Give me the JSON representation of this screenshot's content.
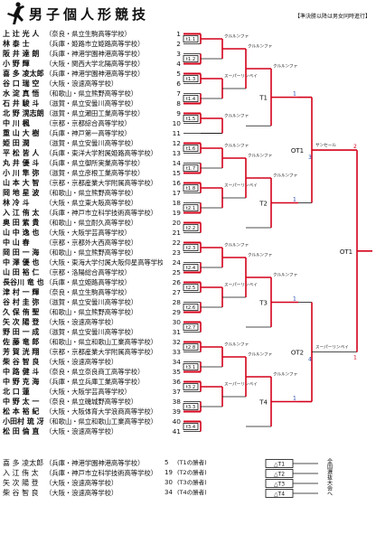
{
  "header": {
    "title": "男子個人形競技",
    "note": "【準決勝以降は男女同時進行】"
  },
  "entries": [
    {
      "name": "上 辻 光 人",
      "school": "（奈良・県立生駒高等学校）",
      "no": "1"
    },
    {
      "name": "林 泰 士",
      "school": "（兵庫・姫路市立姫路高等学校）",
      "no": "2"
    },
    {
      "name": "阪 井 達 朗",
      "school": "（兵庫・神港学園神港高等学校）",
      "no": "3"
    },
    {
      "name": "小 野 輝",
      "school": "（大阪・関西大学北陽高等学校）",
      "no": "4"
    },
    {
      "name": "喜 多 凌太郎",
      "school": "（兵庫・神港学園神港高等学校）",
      "no": "5"
    },
    {
      "name": "谷 口 瑞 空",
      "school": "（大阪・浪速高等学校）",
      "no": "6"
    },
    {
      "name": "水 淀 真 悟",
      "school": "（和歌山・県立熊野高等学校）",
      "no": "7"
    },
    {
      "name": "石 井 駿 斗",
      "school": "（滋賀・県立安曇川高等学校）",
      "no": "8"
    },
    {
      "name": "北 野 滉志朗",
      "school": "（滋賀・県立瀬田工業高等学校）",
      "no": "9"
    },
    {
      "name": "中 川 楓",
      "school": "（京都・京都綜合高等学校）",
      "no": "10"
    },
    {
      "name": "重 山 大 樹",
      "school": "（兵庫・神戸第一高等学校）",
      "no": "11"
    },
    {
      "name": "姫 田 潤",
      "school": "（滋賀・県立安曇川高等学校）",
      "no": "12"
    },
    {
      "name": "平 松 皆 人",
      "school": "（兵庫・東洋大学附属姫路高等学校）",
      "no": "13"
    },
    {
      "name": "丸 井 優 斗",
      "school": "（兵庫・県立御所実業高等学校）",
      "no": "14"
    },
    {
      "name": "小 川 隼 弥",
      "school": "（滋賀・県立彦根工業高等学校）",
      "no": "15"
    },
    {
      "name": "山 本 大 智",
      "school": "（京都・京都産業大学附属高等学校）",
      "no": "16"
    },
    {
      "name": "岡 地 星 波",
      "school": "（和歌山・県立熊野高等学校）",
      "no": "17"
    },
    {
      "name": "林 冷 斗",
      "school": "（大阪・県立東大阪高等学校）",
      "no": "18"
    },
    {
      "name": "入 江 侑 太",
      "school": "（兵庫・神戸市立科学技術高等学校）",
      "no": "19"
    },
    {
      "name": "奥 田 紫 貴",
      "school": "（和歌山・県立耐久高等学校）",
      "no": "20"
    },
    {
      "name": "山 中 逸 也",
      "school": "（大阪・大阪学芸高等学校）",
      "no": "21"
    },
    {
      "name": "中 山 春",
      "school": "（京都・京都外大西高等学校）",
      "no": "22"
    },
    {
      "name": "岡 田 一 海",
      "school": "（和歌山・県立熊野高等学校）",
      "no": "23"
    },
    {
      "name": "中 澤 優 也",
      "school": "（大阪・東海大学付属大阪仰星高等学校）",
      "no": "24"
    },
    {
      "name": "山 田 裕 仁",
      "school": "（京都・洛陽総合高等学校）",
      "no": "25"
    },
    {
      "name": "長谷川 竜 也",
      "school": "（兵庫・県立姫路高等学校）",
      "no": "26"
    },
    {
      "name": "津 村 一 輝",
      "school": "（奈良・県立生駒高等学校）",
      "no": "27"
    },
    {
      "name": "谷 村 圭 弥",
      "school": "（滋賀・県立安曇川高等学校）",
      "no": "28"
    },
    {
      "name": "久 保 侑 聖",
      "school": "（和歌山・県立熊野高等学校）",
      "no": "29"
    },
    {
      "name": "矢 次 陽 登",
      "school": "（大阪・浪速高等学校）",
      "no": "30"
    },
    {
      "name": "野 田 一 成",
      "school": "（滋賀・県立安曇川高等学校）",
      "no": "31"
    },
    {
      "name": "佐 藤 竜 郎",
      "school": "（和歌山・県立和歌山工業高等学校）",
      "no": "32"
    },
    {
      "name": "芳 賀 洸 翔",
      "school": "（京都・京都産業大学附属高等学校）",
      "no": "33"
    },
    {
      "name": "柴 谷 智 良",
      "school": "（大阪・浪速高等学校）",
      "no": "34"
    },
    {
      "name": "中 路 健 斗",
      "school": "（奈良・県立奈良商工高等学校）",
      "no": "35"
    },
    {
      "name": "中 野 克 海",
      "school": "（兵庫・県立兵庫工業高等学校）",
      "no": "36"
    },
    {
      "name": "北 口 蓮",
      "school": "（大阪・大阪学芸高等学校）",
      "no": "37"
    },
    {
      "name": "中 野 太 一",
      "school": "（奈良・県立磯城野高等学校）",
      "no": "38"
    },
    {
      "name": "松 本 裕 紀",
      "school": "（大阪・大阪体育大学浪商高等学校）",
      "no": "39"
    },
    {
      "name": "小田村 琉 冴",
      "school": "（和歌山・県立和歌山工業高等学校）",
      "no": "40"
    },
    {
      "name": "松 田 倫 直",
      "school": "（大阪・浪速高等学校）",
      "no": "41"
    }
  ],
  "reference": [
    {
      "name": "喜 多 凌太郎",
      "school": "（兵庫・神港学園神港高等学校）",
      "no": "5",
      "note": "(T1の勝者)"
    },
    {
      "name": "入 江 侑 太",
      "school": "（兵庫・神戸市立科学技術高等学校）",
      "no": "19",
      "note": "(T2の勝者)"
    },
    {
      "name": "矢 次 陽 登",
      "school": "（大阪・浪速高等学校）",
      "no": "30",
      "note": "(T3の勝者)"
    },
    {
      "name": "柴 谷 智 良",
      "school": "（大阪・浪速高等学校）",
      "no": "34",
      "note": "(T4の勝者)"
    }
  ],
  "bracket": {
    "quarter_labels": [
      "T1",
      "T2",
      "T3",
      "T4"
    ],
    "round_codes": [
      "t1.1",
      "t1.2",
      "t1.3",
      "t1.4",
      "t1.5",
      "t1.6",
      "t1.7",
      "t1.8",
      "t2.1",
      "t2.2",
      "t2.3",
      "t2.4",
      "t2.5",
      "t2.6",
      "t2.7",
      "t2.8",
      "t3.1",
      "t3.2",
      "t3.3",
      "t3.4",
      "t3.5",
      "t3.6",
      "t3.7",
      "t3.8",
      "t4.1",
      "t4.2",
      "t4.3",
      "t4.4",
      "t4.5",
      "t4.6",
      "t4.7",
      "t4.8"
    ],
    "kata_labels": [
      "クルルンファ",
      "スーパーリンペイ",
      "サンセール",
      "セーパイ",
      "ニーパイポ",
      "サイファ",
      "スーパーリンペイ"
    ],
    "final_labels": [
      "OT1",
      "OT2",
      "OT1"
    ],
    "result_labels": [
      "△T1",
      "△T2",
      "△T3",
      "△T4"
    ],
    "side_note": "全国選抜大会へ"
  },
  "colors": {
    "win": "#d4001a",
    "line": "#111111",
    "seed": "#1a3fa8"
  }
}
